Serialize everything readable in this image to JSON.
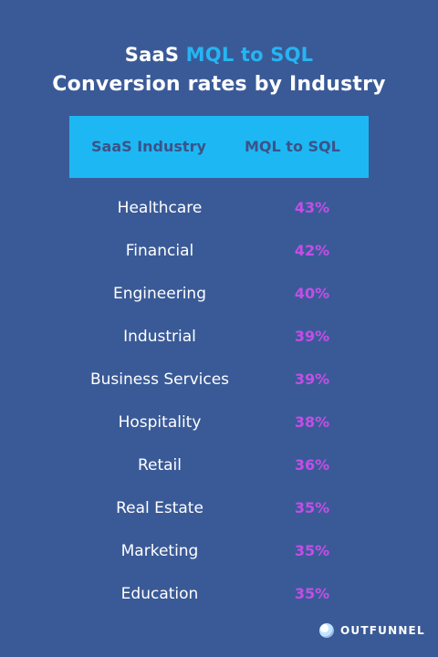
{
  "title": {
    "line1_prefix": "SaaS",
    "line1_accent": "MQL to SQL",
    "line2": "Conversion rates by Industry"
  },
  "colors": {
    "background": "#3a5a97",
    "header_bg": "#1db8f3",
    "accent": "#27b4f2",
    "value": "#c44ee6"
  },
  "chart_data": {
    "type": "table",
    "columns": [
      "SaaS Industry",
      "MQL to SQL"
    ],
    "rows": [
      {
        "industry": "Healthcare",
        "rate": "43%"
      },
      {
        "industry": "Financial",
        "rate": "42%"
      },
      {
        "industry": "Engineering",
        "rate": "40%"
      },
      {
        "industry": "Industrial",
        "rate": "39%"
      },
      {
        "industry": "Business Services",
        "rate": "39%"
      },
      {
        "industry": "Hospitality",
        "rate": "38%"
      },
      {
        "industry": "Retail",
        "rate": "36%"
      },
      {
        "industry": "Real Estate",
        "rate": "35%"
      },
      {
        "industry": "Marketing",
        "rate": "35%"
      },
      {
        "industry": "Education",
        "rate": "35%"
      }
    ]
  },
  "brand": {
    "name": "OUTFUNNEL",
    "icon": "outfunnel-logo"
  }
}
